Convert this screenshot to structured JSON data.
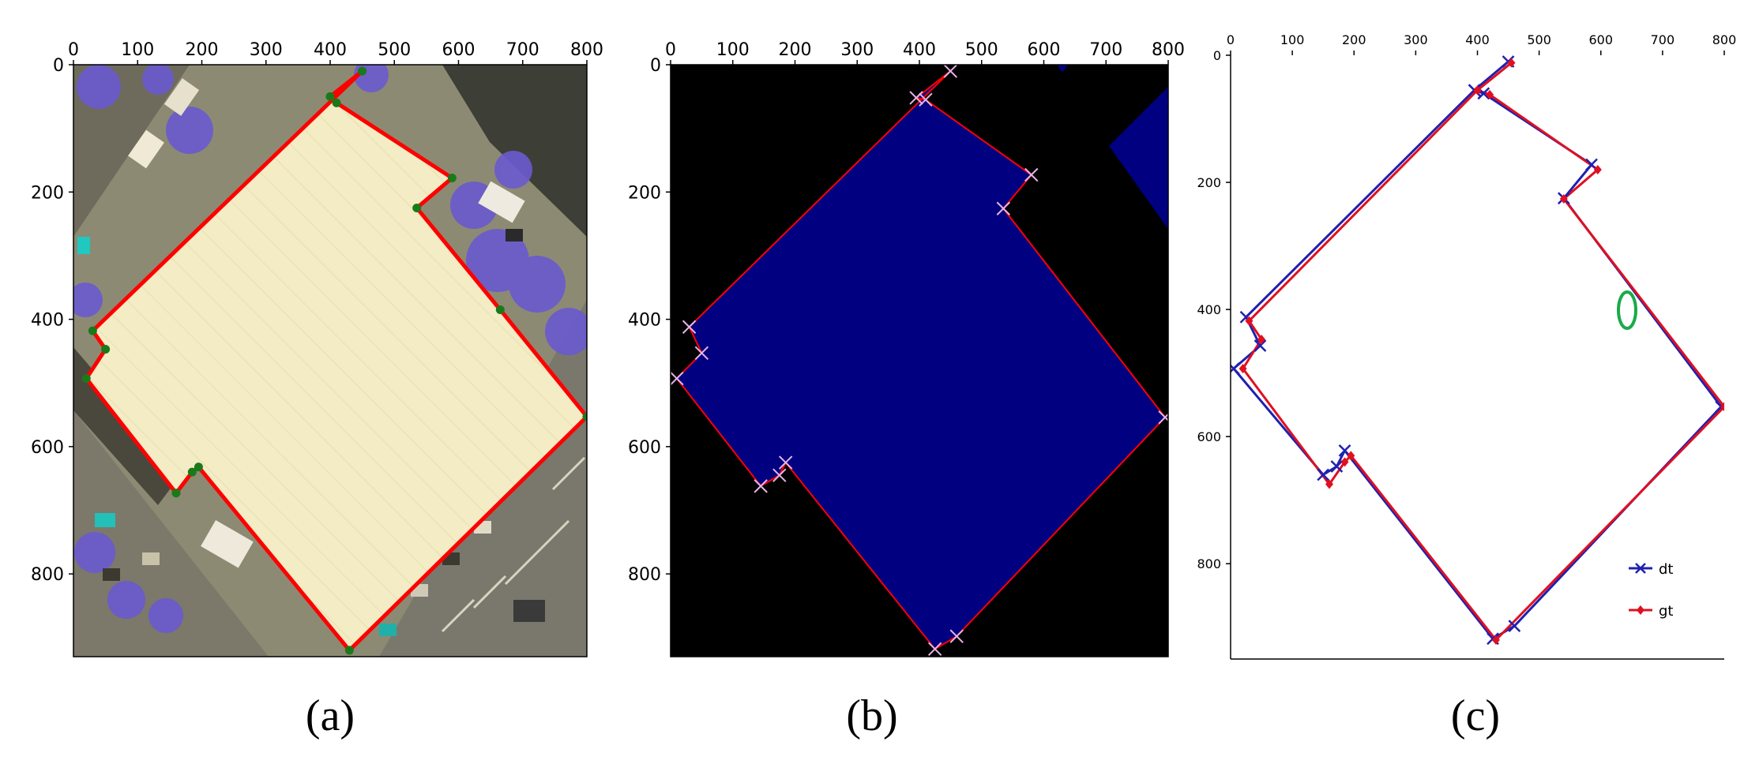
{
  "panels": [
    {
      "id": "a",
      "caption": "(a)",
      "kind": "image-with-polygon",
      "xticks": [
        "0",
        "100",
        "200",
        "300",
        "400",
        "500",
        "600",
        "700",
        "800"
      ],
      "yticks": [
        "0",
        "200",
        "400",
        "600",
        "800"
      ]
    },
    {
      "id": "b",
      "caption": "(b)",
      "kind": "mask-with-polygon",
      "xticks": [
        "0",
        "100",
        "200",
        "300",
        "400",
        "500",
        "600",
        "700",
        "800"
      ],
      "yticks": [
        "0",
        "200",
        "400",
        "600",
        "800"
      ]
    },
    {
      "id": "c",
      "caption": "(c)",
      "kind": "line-overlay",
      "xticks": [
        "0",
        "100",
        "200",
        "300",
        "400",
        "500",
        "600",
        "700",
        "800"
      ],
      "yticks": [
        "0",
        "200",
        "400",
        "600",
        "800"
      ]
    }
  ],
  "colors": {
    "polygon": "#ff0000",
    "vertex_a": "#1a7a1a",
    "mask": "#000080",
    "background_b": "#000000",
    "cross_b": "#e8b4e8",
    "dt": "#2020b0",
    "gt": "#e01020",
    "highlight": "#1aaa4a",
    "roof": "#f3ecc4"
  },
  "chart_data": [
    {
      "type": "scatter",
      "panel": "a",
      "xlim": [
        0,
        800
      ],
      "ylim": [
        930,
        0
      ],
      "series": [
        {
          "x": [
            450,
            400,
            410,
            590,
            535,
            665,
            800,
            430,
            195,
            185,
            160,
            20,
            50,
            30
          ],
          "y": [
            10,
            50,
            60,
            178,
            225,
            385,
            553,
            920,
            632,
            640,
            673,
            493,
            447,
            418
          ]
        }
      ]
    },
    {
      "type": "scatter",
      "panel": "b",
      "xlim": [
        0,
        800
      ],
      "ylim": [
        930,
        0
      ],
      "series": [
        {
          "x": [
            450,
            395,
            410,
            580,
            535,
            795,
            460,
            425,
            185,
            175,
            145,
            10,
            50,
            30
          ],
          "y": [
            10,
            52,
            55,
            173,
            226,
            554,
            898,
            918,
            625,
            645,
            662,
            493,
            453,
            412
          ]
        }
      ]
    },
    {
      "type": "line",
      "panel": "c",
      "xlim": [
        0,
        800
      ],
      "ylim": [
        950,
        0
      ],
      "legend": "bottom-right",
      "series": [
        {
          "name": "dt",
          "x": [
            450,
            395,
            410,
            585,
            540,
            795,
            460,
            425,
            185,
            172,
            150,
            5,
            48,
            25,
            395
          ],
          "y": [
            10,
            55,
            60,
            172,
            225,
            553,
            898,
            918,
            622,
            647,
            660,
            493,
            457,
            412,
            55
          ]
        },
        {
          "name": "gt",
          "x": [
            455,
            400,
            420,
            595,
            540,
            800,
            430,
            195,
            185,
            160,
            20,
            50,
            30,
            400
          ],
          "y": [
            12,
            55,
            62,
            180,
            226,
            553,
            920,
            630,
            640,
            675,
            493,
            447,
            418,
            55
          ]
        }
      ]
    }
  ]
}
